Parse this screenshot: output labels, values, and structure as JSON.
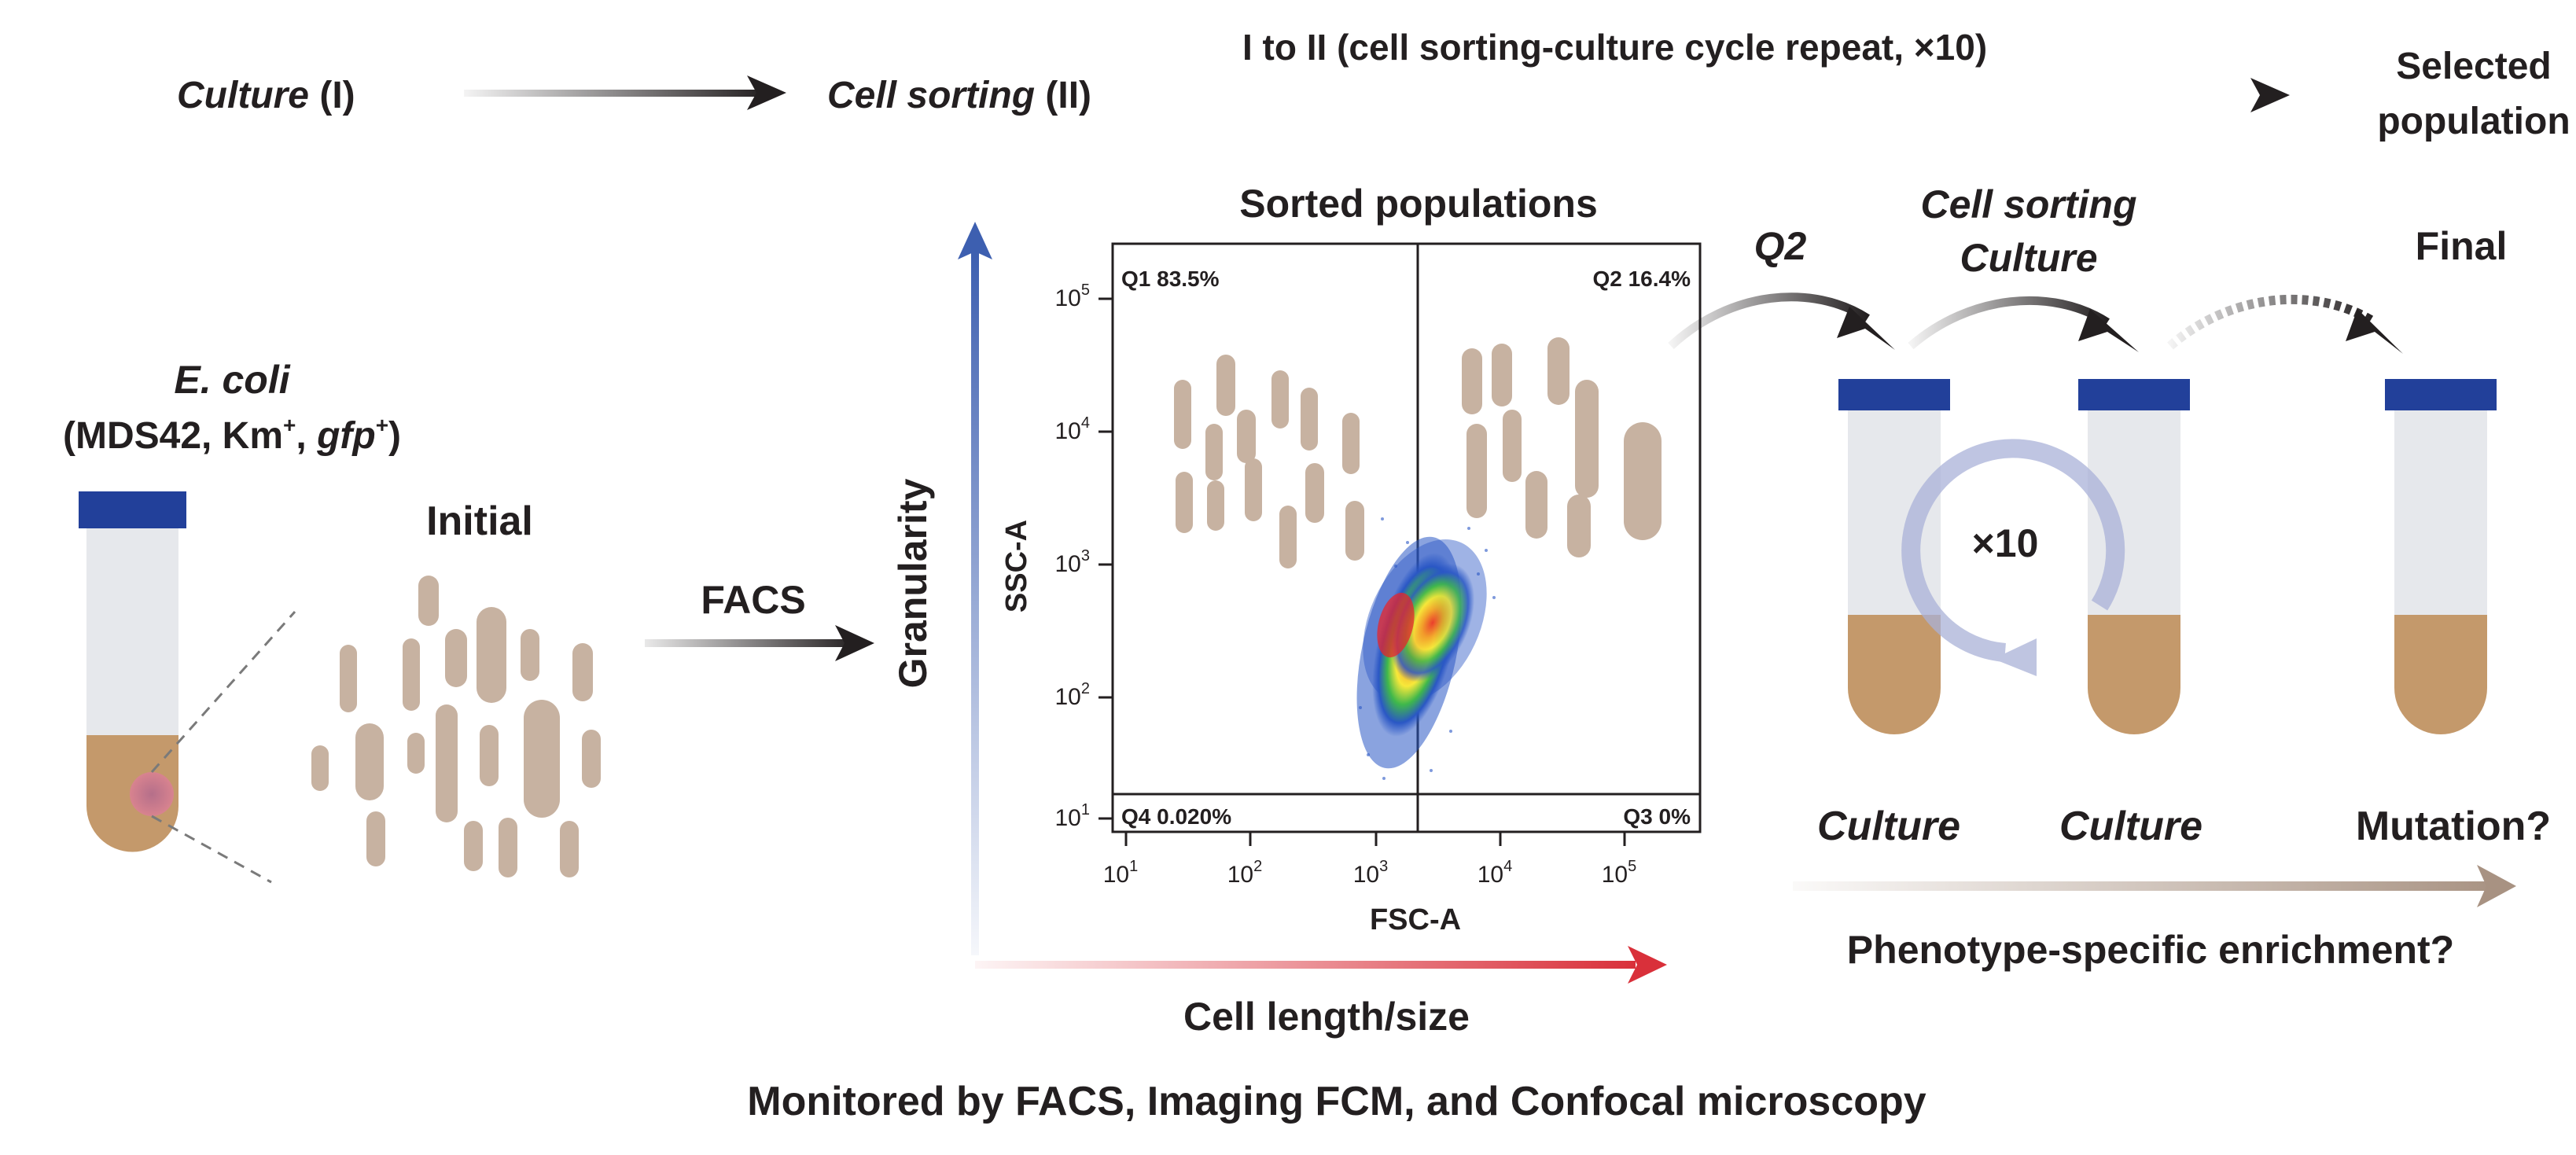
{
  "colors": {
    "cell": "#c7b2a1",
    "tube_cap": "#22409a",
    "tube_body": "#e6e8ec",
    "culture_fill": "#c4996b",
    "length_axis": "#d9303a",
    "granularity_axis": "#3d5fb0",
    "cycle_ring": "#aab2d8",
    "ink": "#231f20"
  },
  "top_flow": {
    "culture_label": "Culture",
    "culture_roman": "(I)",
    "sorting_label": "Cell sorting",
    "sorting_roman": "(II)",
    "repeat_label": "I to II (cell sorting-culture cycle repeat, ×10)",
    "selected_line1": "Selected",
    "selected_line2": "population"
  },
  "left": {
    "strain_name": "E. coli",
    "strain_open": "(MDS42, Km",
    "strain_plus": "+",
    "strain_sep": ", ",
    "strain_gfp": "gfp",
    "strain_plus2": "+",
    "strain_close": ")",
    "initial_label": "Initial",
    "facs_label": "FACS"
  },
  "axes_labels": {
    "granularity": "Granularity",
    "cell_length": "Cell length/size"
  },
  "plot": {
    "title": "Sorted populations",
    "x_label": "FSC-A",
    "y_label": "SSC-A",
    "x_ticks": [
      "10^1",
      "10^2",
      "10^3",
      "10^4",
      "10^5"
    ],
    "y_ticks": [
      "10^1",
      "10^2",
      "10^3",
      "10^4",
      "10^5"
    ],
    "quadrants": {
      "q1": "Q1 83.5%",
      "q2": "Q2 16.4%",
      "q3": "Q3 0%",
      "q4": "Q4 0.020%"
    }
  },
  "cycle": {
    "q2_label": "Q2",
    "sorting_label": "Cell sorting",
    "culture_label": "Culture",
    "final_label": "Final",
    "repeat_label": "×10",
    "culture_bottom_1": "Culture",
    "culture_bottom_2": "Culture",
    "mutation_label": "Mutation?",
    "enrichment_label": "Phenotype-specific enrichment?"
  },
  "footer": {
    "monitoring": "Monitored by FACS, Imaging FCM, and Confocal microscopy"
  }
}
